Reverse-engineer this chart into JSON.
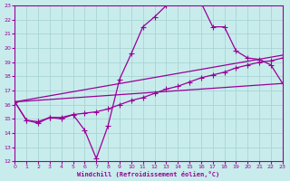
{
  "xlabel": "Windchill (Refroidissement éolien,°C)",
  "xlim": [
    0,
    23
  ],
  "ylim": [
    12,
    23
  ],
  "xticks": [
    0,
    1,
    2,
    3,
    4,
    5,
    6,
    7,
    8,
    9,
    10,
    11,
    12,
    13,
    14,
    15,
    16,
    17,
    18,
    19,
    20,
    21,
    22,
    23
  ],
  "yticks": [
    12,
    13,
    14,
    15,
    16,
    17,
    18,
    19,
    20,
    21,
    22,
    23
  ],
  "bg_color": "#c8ecec",
  "line_color": "#990099",
  "grid_color": "#aad4d4",
  "curve1_x": [
    0,
    1,
    2,
    3,
    4,
    5,
    6,
    7,
    8,
    9,
    10,
    11,
    12,
    13,
    14,
    15,
    16,
    17,
    18,
    19,
    20,
    21,
    22,
    23
  ],
  "curve1_y": [
    16.2,
    14.9,
    14.7,
    15.1,
    15.0,
    15.3,
    14.2,
    12.2,
    14.5,
    17.8,
    19.6,
    21.5,
    22.2,
    23.0,
    23.2,
    23.2,
    23.2,
    21.5,
    21.5,
    19.8,
    19.3,
    19.2,
    18.8,
    17.5
  ],
  "curve2_x": [
    0,
    1,
    2,
    3,
    4,
    5,
    6,
    7,
    8,
    9,
    10,
    11,
    12,
    13,
    14,
    15,
    16,
    17,
    18,
    19,
    20,
    21,
    22,
    23
  ],
  "curve2_y": [
    16.2,
    14.9,
    14.8,
    15.1,
    15.1,
    15.3,
    15.4,
    15.5,
    15.7,
    16.0,
    16.3,
    16.5,
    16.8,
    17.1,
    17.3,
    17.6,
    17.9,
    18.1,
    18.3,
    18.6,
    18.8,
    19.0,
    19.1,
    19.3
  ],
  "curve3_x": [
    0,
    23
  ],
  "curve3_y": [
    16.2,
    19.5
  ],
  "curve4_x": [
    0,
    23
  ],
  "curve4_y": [
    16.2,
    17.5
  ]
}
